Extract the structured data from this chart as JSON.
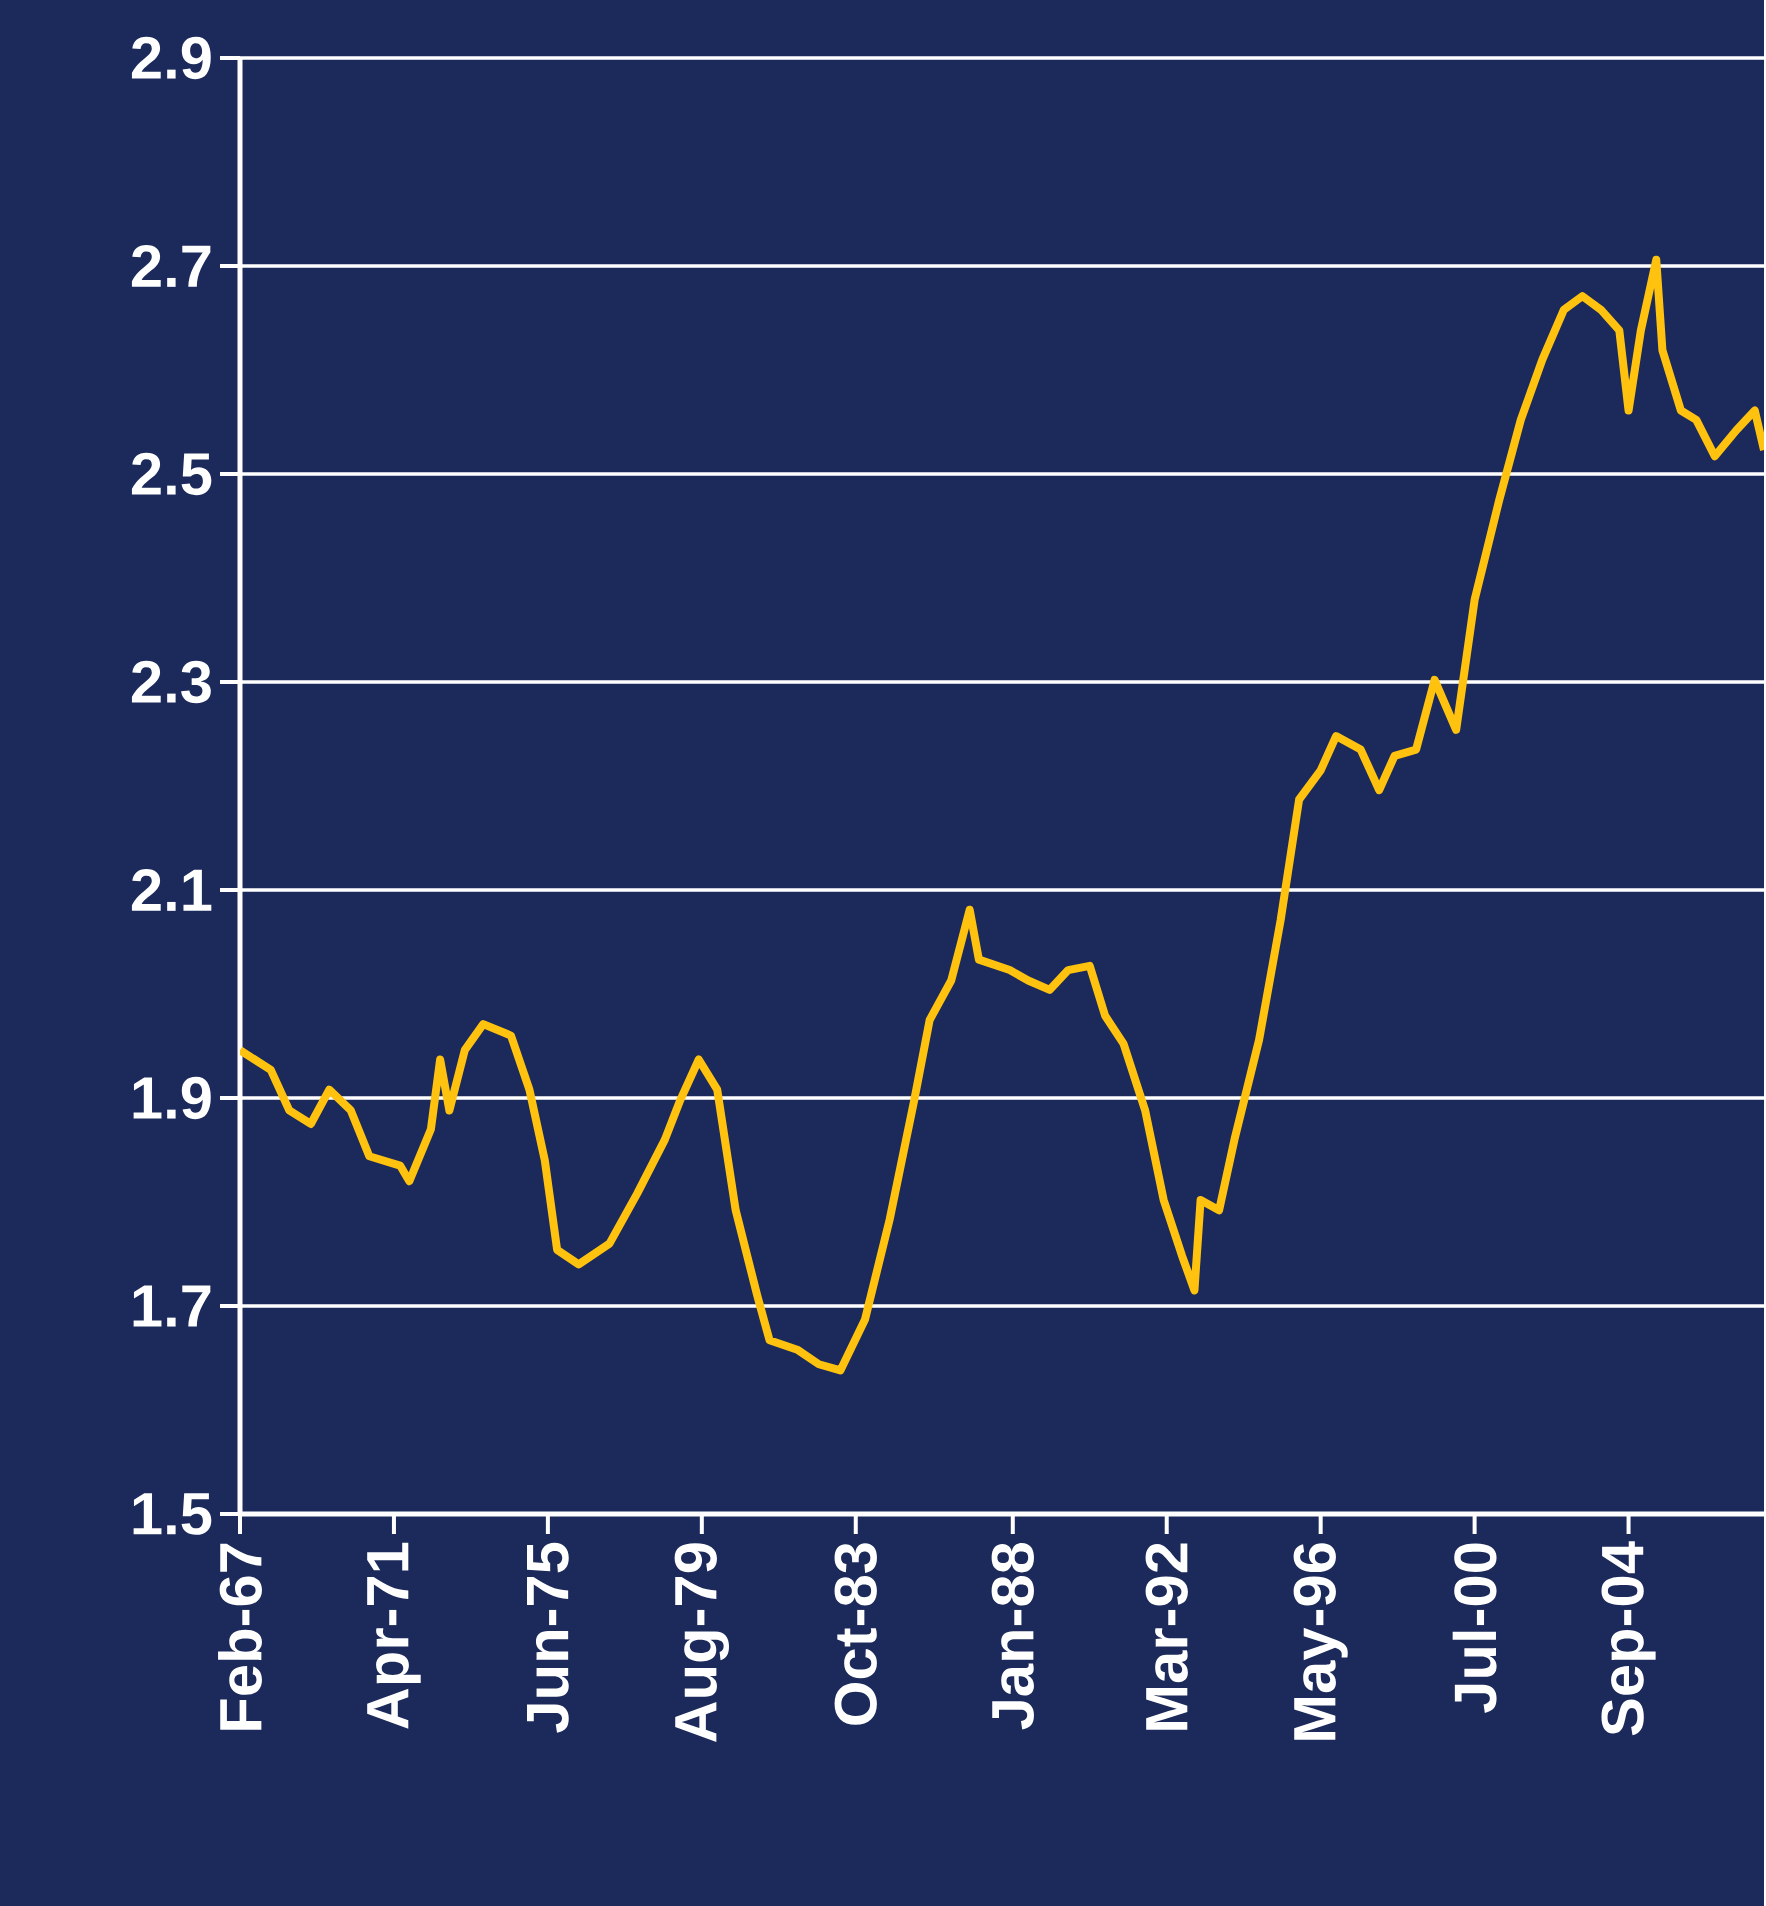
{
  "chart_data": {
    "type": "line",
    "color": "#ffc20e",
    "grid": "y",
    "xlim": [
      "1967-02",
      "2008-05"
    ],
    "ylim": [
      1.5,
      2.9
    ],
    "yticks": [
      1.5,
      1.7,
      1.9,
      2.1,
      2.3,
      2.5,
      2.7,
      2.9
    ],
    "xticks": [
      {
        "value": "1967-02",
        "label": "Feb-67"
      },
      {
        "value": "1971-04",
        "label": "Apr-71"
      },
      {
        "value": "1975-06",
        "label": "Jun-75"
      },
      {
        "value": "1979-08",
        "label": "Aug-79"
      },
      {
        "value": "1983-10",
        "label": "Oct-83"
      },
      {
        "value": "1988-01",
        "label": "Jan-88"
      },
      {
        "value": "1992-03",
        "label": "Mar-92"
      },
      {
        "value": "1996-05",
        "label": "May-96"
      },
      {
        "value": "2000-07",
        "label": "Jul-00"
      },
      {
        "value": "2004-09",
        "label": "Sep-04"
      }
    ],
    "x": [
      "1967-02",
      "1967-12",
      "1968-06",
      "1969-01",
      "1969-07",
      "1970-02",
      "1970-08",
      "1971-06",
      "1971-09",
      "1972-04",
      "1972-07",
      "1972-10",
      "1973-03",
      "1973-09",
      "1974-06",
      "1974-12",
      "1975-05",
      "1975-09",
      "1976-04",
      "1977-02",
      "1977-11",
      "1978-08",
      "1979-01",
      "1979-07",
      "1980-01",
      "1980-07",
      "1981-02",
      "1981-06",
      "1982-03",
      "1982-10",
      "1983-05",
      "1984-01",
      "1984-09",
      "1985-05",
      "1985-10",
      "1986-05",
      "1986-11",
      "1987-02",
      "1987-12",
      "1988-06",
      "1989-01",
      "1989-07",
      "1990-02",
      "1990-07",
      "1991-01",
      "1991-08",
      "1992-02",
      "1992-08",
      "1992-12",
      "1993-02",
      "1993-08",
      "1994-01",
      "1994-09",
      "1995-04",
      "1995-10",
      "1996-05",
      "1996-10",
      "1997-06",
      "1997-12",
      "1998-05",
      "1998-12",
      "1999-06",
      "2000-01",
      "2000-07",
      "2001-03",
      "2001-10",
      "2002-05",
      "2002-12",
      "2003-06",
      "2003-12",
      "2004-06",
      "2004-09",
      "2005-01",
      "2005-06",
      "2005-08",
      "2006-02",
      "2006-07",
      "2007-01",
      "2007-08",
      "2008-02",
      "2008-05"
    ],
    "values": [
      1.946,
      1.927,
      1.888,
      1.875,
      1.908,
      1.888,
      1.844,
      1.835,
      1.82,
      1.87,
      1.937,
      1.888,
      1.946,
      1.971,
      1.96,
      1.908,
      1.84,
      1.754,
      1.74,
      1.76,
      1.808,
      1.86,
      1.898,
      1.937,
      1.908,
      1.792,
      1.71,
      1.667,
      1.658,
      1.644,
      1.638,
      1.687,
      1.783,
      1.898,
      1.975,
      2.013,
      2.081,
      2.033,
      2.023,
      2.013,
      2.004,
      2.023,
      2.027,
      1.979,
      1.952,
      1.888,
      1.802,
      1.748,
      1.715,
      1.802,
      1.792,
      1.86,
      1.956,
      2.071,
      2.187,
      2.215,
      2.248,
      2.235,
      2.196,
      2.229,
      2.235,
      2.302,
      2.254,
      2.379,
      2.475,
      2.552,
      2.61,
      2.658,
      2.671,
      2.658,
      2.638,
      2.561,
      2.638,
      2.706,
      2.619,
      2.561,
      2.552,
      2.517,
      2.542,
      2.561,
      2.523
    ]
  }
}
